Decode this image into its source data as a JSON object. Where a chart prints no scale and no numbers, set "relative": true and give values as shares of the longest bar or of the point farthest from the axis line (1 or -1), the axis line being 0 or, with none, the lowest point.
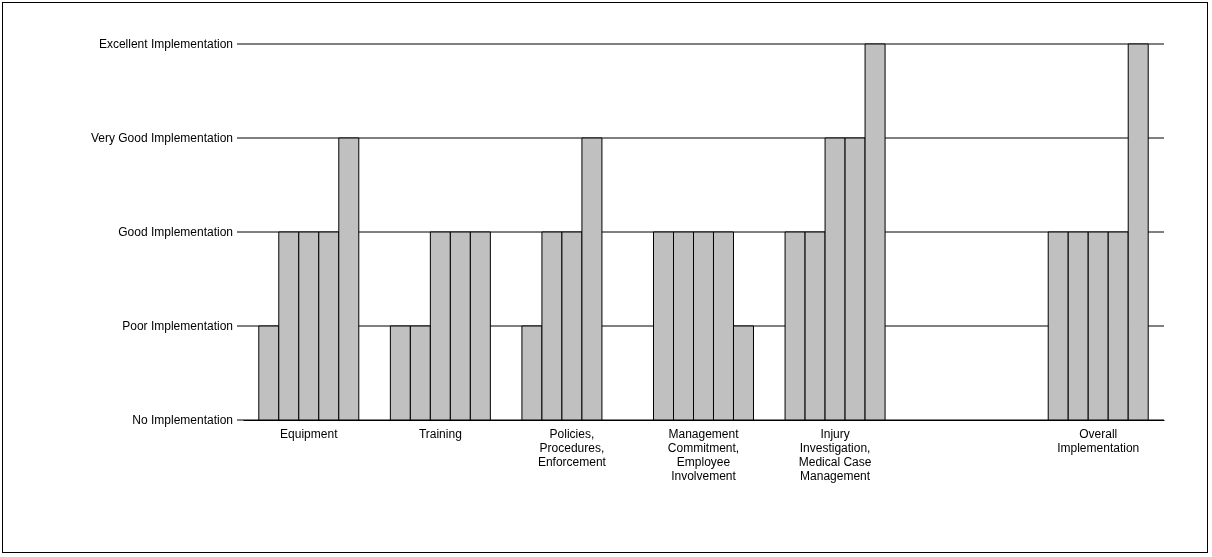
{
  "chart_data": {
    "type": "bar",
    "categories": [
      "Equipment",
      "Training",
      "Policies, Procedures, Enforcement",
      "Management Commitment, Employee Involvement",
      "Injury Investigation, Medical Case Management",
      null,
      "Overall Implementation"
    ],
    "series": [
      {
        "color": "#c0c0c0",
        "values": [
          0.25,
          0.25,
          0.25,
          0.5,
          0.5,
          null,
          0.5
        ]
      },
      {
        "color": "#c0c0c0",
        "values": [
          0.5,
          0.25,
          0.5,
          0.5,
          0.5,
          null,
          0.5
        ]
      },
      {
        "color": "#c0c0c0",
        "values": [
          0.5,
          0.5,
          0.5,
          0.5,
          0.75,
          null,
          0.5
        ]
      },
      {
        "color": "#c0c0c0",
        "values": [
          0.5,
          0.5,
          0.75,
          0.5,
          0.75,
          null,
          0.5
        ]
      },
      {
        "color": "#c0c0c0",
        "values": [
          0.75,
          0.5,
          null,
          0.25,
          1,
          null,
          1
        ]
      }
    ],
    "relative": true,
    "ref_lines": [
      {
        "axis": "y",
        "value": 0,
        "label": "No Implementation"
      },
      {
        "axis": "y",
        "value": 0.25,
        "label": "Poor Implementation"
      },
      {
        "axis": "y",
        "value": 0.5,
        "label": "Good Implementation"
      },
      {
        "axis": "y",
        "value": 0.75,
        "label": "Very Good Implementation"
      },
      {
        "axis": "y",
        "value": 1,
        "label": "Excellent Implementation"
      }
    ]
  }
}
